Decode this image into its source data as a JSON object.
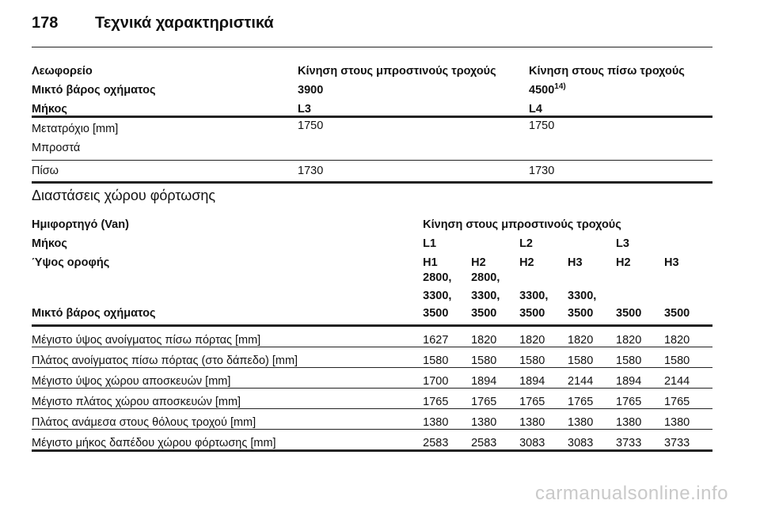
{
  "page": {
    "number": "178",
    "title": "Τεχνικά χαρακτηριστικά"
  },
  "table1": {
    "header_rows": [
      [
        "Λεωφορείο",
        "Κίνηση στους μπροστινούς τροχούς",
        "Κίνηση στους πίσω τροχούς"
      ],
      [
        "Μικτό βάρος οχήματος",
        "3900",
        "4500"
      ],
      [
        "Μήκος",
        "L3",
        "L4"
      ]
    ],
    "weight_footnote": "14)",
    "rows": [
      {
        "label_line1": "Μετατρόχιο [mm]",
        "label_line2": "Μπροστά",
        "v1": "1750",
        "v2": "1750"
      },
      {
        "label_line1": "Πίσω",
        "v1": "1730",
        "v2": "1730"
      }
    ]
  },
  "section2": {
    "title": "Διαστάσεις χώρου φόρτωσης",
    "vehicle_label": "Ημιφορτηγό (Van)",
    "drive_label": "Κίνηση στους μπροστινούς τροχούς",
    "length_label": "Μήκος",
    "lengths": [
      "L1",
      "L2",
      "L3"
    ],
    "height_label": "Ύψος οροφής",
    "heights": [
      "H1",
      "H2",
      "H2",
      "H3",
      "H2",
      "H3"
    ],
    "weight_label": "Μικτό βάρος οχήματος",
    "weights": [
      [
        "2800,",
        "3300,",
        "3500"
      ],
      [
        "2800,",
        "3300,",
        "3500"
      ],
      [
        "3300,",
        "3500"
      ],
      [
        "3300,",
        "3500"
      ],
      [
        "3500"
      ],
      [
        "3500"
      ]
    ],
    "rows": [
      {
        "label": "Μέγιστο ύψος ανοίγματος πίσω πόρτας [mm]",
        "values": [
          "1627",
          "1820",
          "1820",
          "1820",
          "1820",
          "1820"
        ]
      },
      {
        "label": "Πλάτος ανοίγματος πίσω πόρτας (στο δάπεδο) [mm]",
        "values": [
          "1580",
          "1580",
          "1580",
          "1580",
          "1580",
          "1580"
        ]
      },
      {
        "label": "Μέγιστο ύψος χώρου αποσκευών [mm]",
        "values": [
          "1700",
          "1894",
          "1894",
          "2144",
          "1894",
          "2144"
        ]
      },
      {
        "label": "Μέγιστο πλάτος χώρου αποσκευών [mm]",
        "values": [
          "1765",
          "1765",
          "1765",
          "1765",
          "1765",
          "1765"
        ]
      },
      {
        "label": "Πλάτος ανάμεσα στους θόλους τροχού [mm]",
        "values": [
          "1380",
          "1380",
          "1380",
          "1380",
          "1380",
          "1380"
        ]
      },
      {
        "label": "Μέγιστο μήκος δαπέδου χώρου φόρτωσης [mm]",
        "values": [
          "2583",
          "2583",
          "3083",
          "3083",
          "3733",
          "3733"
        ]
      }
    ]
  },
  "watermark": "carmanualsonline.info"
}
